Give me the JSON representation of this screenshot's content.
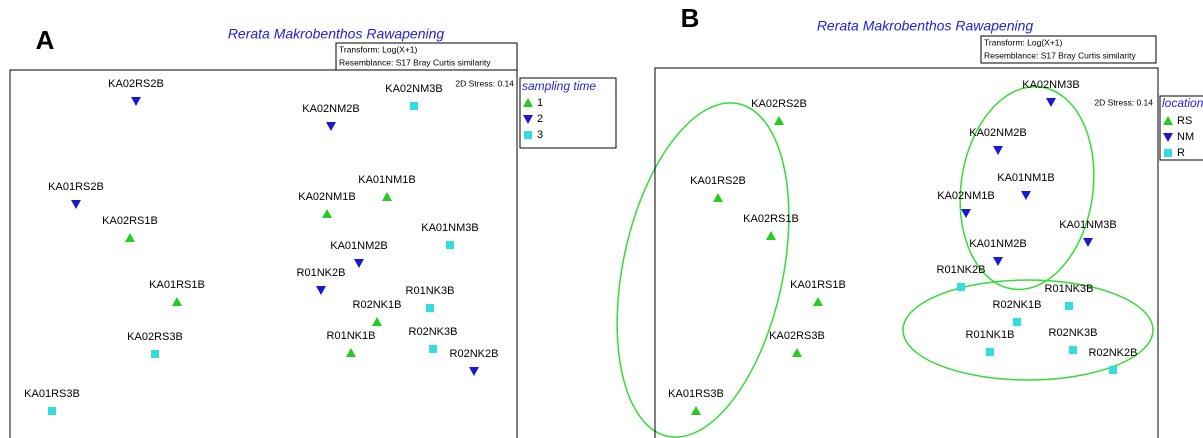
{
  "chart_data": [
    {
      "type": "scatter",
      "panel": "A",
      "title": "Rerata Makrobenthos Rawapening",
      "transform": "Transform: Log(X+1)",
      "resemblance": "Resemblance: S17 Bray Curtis similarity",
      "stress": "2D Stress: 0.14",
      "legend_title": "sampling time",
      "xlim": [
        0,
        507
      ],
      "ylim": [
        0,
        368
      ],
      "series": [
        {
          "name": "1",
          "color": "#22cc22",
          "marker": "triangle-up",
          "labels": [
            "KA01NM1B",
            "KA02NM1B",
            "KA02RS1B",
            "KA01RS1B",
            "R02NK1B",
            "R01NK1B"
          ],
          "x": [
            377,
            317,
            120,
            167,
            367,
            341
          ],
          "y": [
            241,
            224,
            200,
            136,
            116,
            85
          ]
        },
        {
          "name": "2",
          "color": "#1a1acc",
          "marker": "triangle-down",
          "labels": [
            "KA02RS2B",
            "KA02NM2B",
            "KA01RS2B",
            "KA01NM2B",
            "R01NK2B",
            "R02NK2B"
          ],
          "x": [
            126,
            321,
            66,
            349,
            311,
            464
          ],
          "y": [
            337,
            312,
            234,
            175,
            148,
            67
          ]
        },
        {
          "name": "3",
          "color": "#33dddd",
          "marker": "square",
          "labels": [
            "KA02NM3B",
            "KA01NM3B",
            "R01NK3B",
            "R02NK3B",
            "KA02RS3B",
            "KA01RS3B"
          ],
          "x": [
            404,
            440,
            420,
            423,
            145,
            42
          ],
          "y": [
            332,
            193,
            130,
            89,
            84,
            27
          ]
        }
      ]
    },
    {
      "type": "scatter",
      "panel": "B",
      "title": "Rerata Makrobenthos Rawapening",
      "transform": "Transform: Log(X+1)",
      "resemblance": "Resemblance: S17 Bray Curtis similarity",
      "stress": "2D Stress: 0.14",
      "legend_title": "location",
      "xlim": [
        0,
        503
      ],
      "ylim": [
        0,
        370
      ],
      "series": [
        {
          "name": "RS",
          "color": "#22cc22",
          "marker": "triangle-up",
          "labels": [
            "KA02RS2B",
            "KA01RS2B",
            "KA02RS1B",
            "KA01RS1B",
            "KA02RS3B",
            "KA01RS3B"
          ],
          "x": [
            124,
            63,
            116,
            163,
            142,
            41
          ],
          "y": [
            317,
            240,
            202,
            136,
            85,
            27
          ]
        },
        {
          "name": "NM",
          "color": "#1a1acc",
          "marker": "triangle-down",
          "labels": [
            "KA02NM3B",
            "KA02NM2B",
            "KA01NM1B",
            "KA02NM1B",
            "KA01NM3B",
            "KA01NM2B"
          ],
          "x": [
            396,
            343,
            371,
            311,
            433,
            343
          ],
          "y": [
            336,
            288,
            243,
            225,
            196,
            177
          ]
        },
        {
          "name": "R",
          "color": "#33dddd",
          "marker": "square",
          "labels": [
            "R01NK2B",
            "R01NK3B",
            "R02NK1B",
            "R02NK3B",
            "R01NK1B",
            "R02NK2B"
          ],
          "x": [
            306,
            414,
            362,
            418,
            335,
            458
          ],
          "y": [
            151,
            132,
            116,
            88,
            86,
            68
          ]
        }
      ]
    }
  ]
}
